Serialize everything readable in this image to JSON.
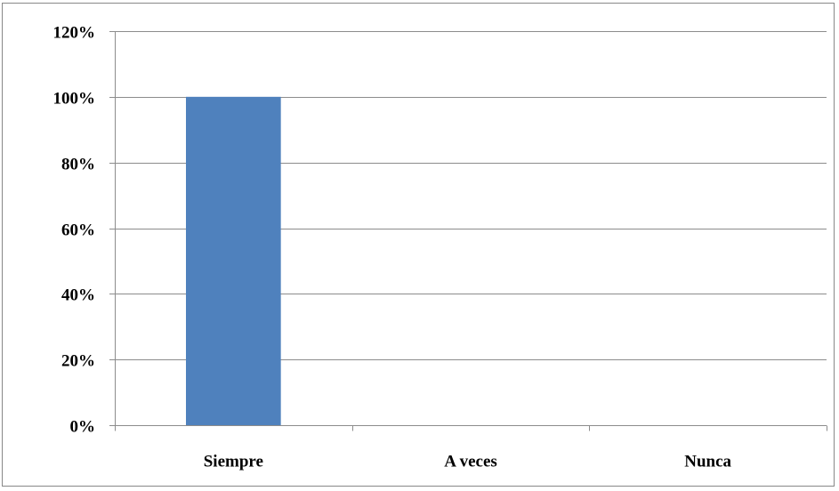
{
  "chart_data": {
    "type": "bar",
    "categories": [
      "Siempre",
      "A veces",
      "Nunca"
    ],
    "series": [
      {
        "values": [
          100,
          0,
          0
        ],
        "color": "#4f81bd"
      }
    ],
    "ylim": [
      0,
      120
    ],
    "y_ticks": [
      0,
      20,
      40,
      60,
      80,
      100,
      120
    ],
    "y_tick_labels": [
      "0%",
      "20%",
      "40%",
      "60%",
      "80%",
      "100%",
      "120%"
    ],
    "y_unit": "%",
    "grid": true,
    "legend": "none",
    "title": "",
    "xlabel": "",
    "ylabel": ""
  }
}
